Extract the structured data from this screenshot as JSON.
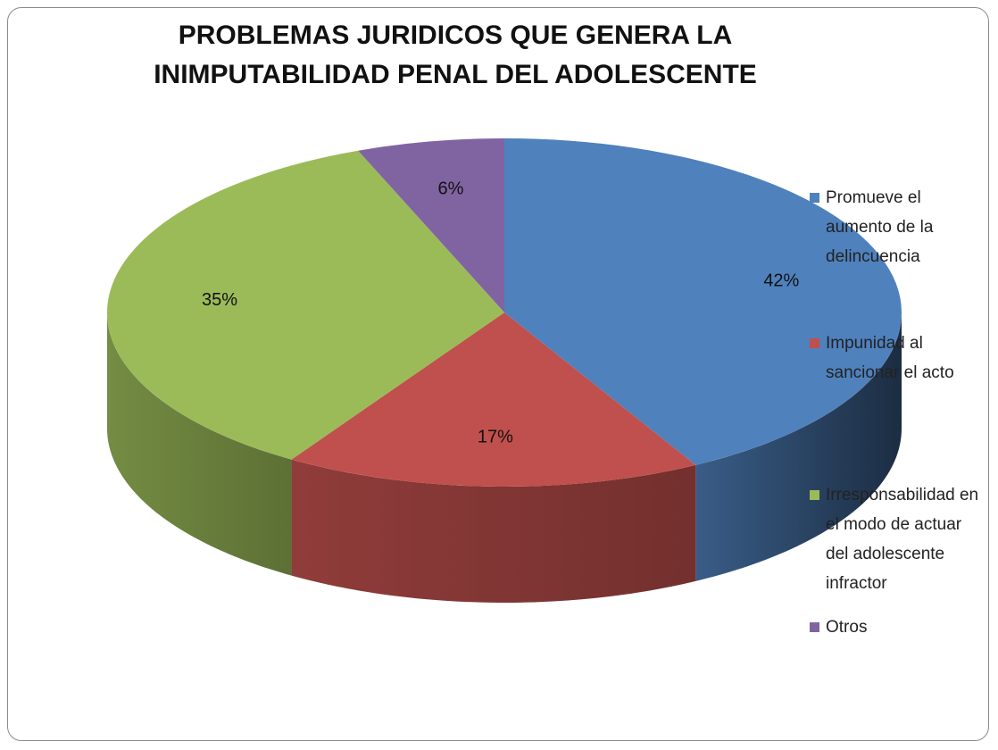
{
  "chart_data": {
    "type": "pie",
    "title": "PROBLEMAS JURIDICOS QUE GENERA LA INIMPUTABILIDAD PENAL DEL ADOLESCENTE",
    "categories": [
      "Promueve el aumento de la delincuencia",
      "Impunidad al sancionar el acto",
      "Irresponsabilidad en el modo de actuar del adolescente infractor",
      "Otros"
    ],
    "values": [
      42,
      17,
      35,
      6
    ],
    "value_labels": [
      "42%",
      "17%",
      "35%",
      "6%"
    ],
    "colors": [
      "#4f81bd",
      "#c0504d",
      "#9bbb59",
      "#8064a2"
    ],
    "legend": "right"
  }
}
